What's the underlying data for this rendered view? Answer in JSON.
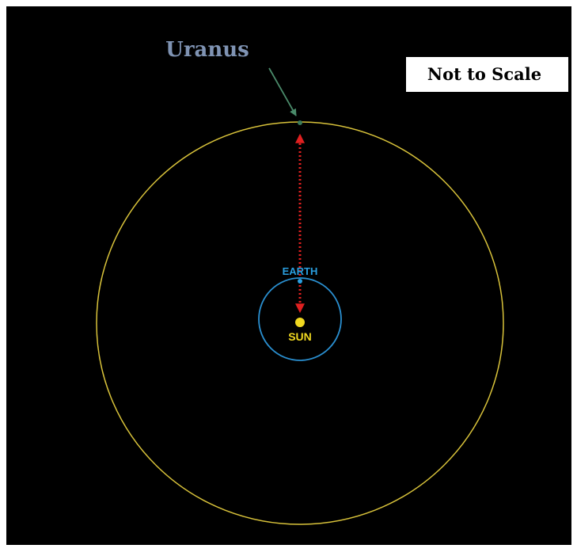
{
  "labels": {
    "uranus": "Uranus",
    "note": "Not to Scale",
    "earth": "EARTH",
    "sun": "SUN"
  }
}
